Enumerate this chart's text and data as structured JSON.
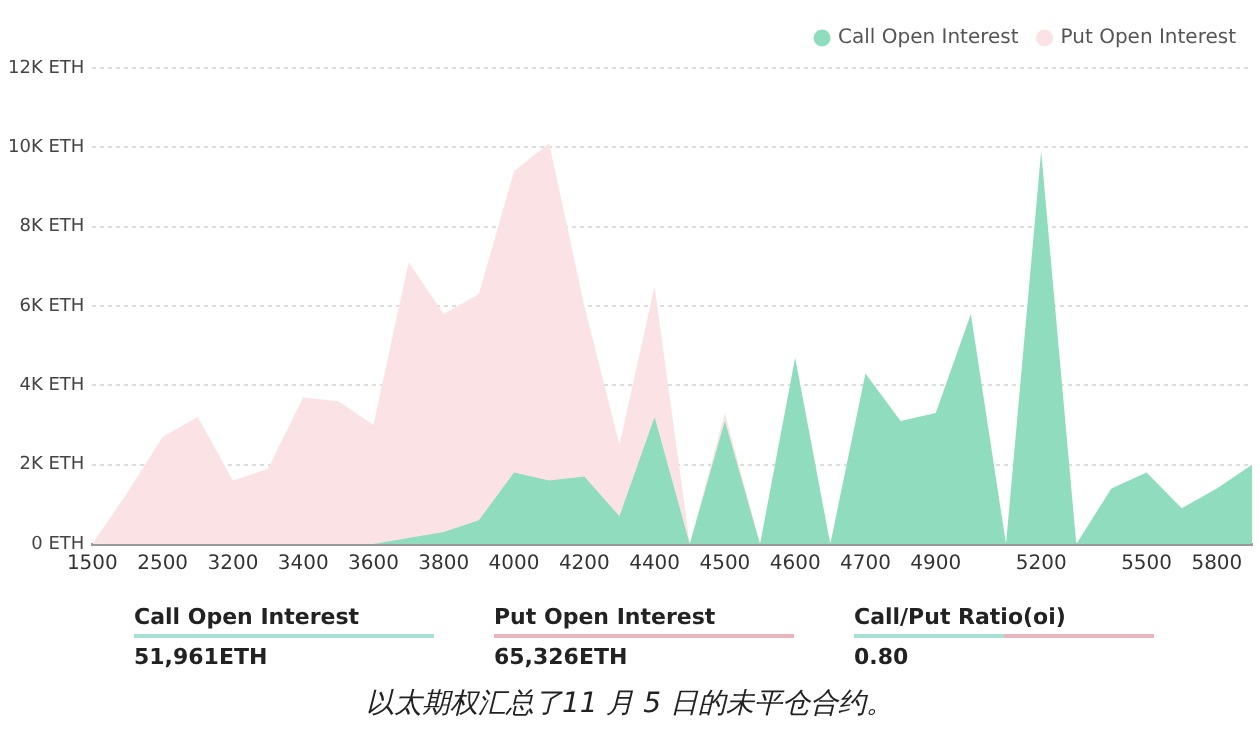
{
  "chart_data": {
    "type": "area",
    "categories": [
      "1500",
      null,
      "2500",
      null,
      "3200",
      null,
      "3400",
      null,
      "3600",
      null,
      "3800",
      null,
      "4000",
      null,
      "4200",
      null,
      "4400",
      null,
      "4500",
      null,
      "4600",
      null,
      "4700",
      null,
      "4900",
      null,
      null,
      "5200",
      null,
      null,
      "5500",
      null,
      "5800",
      null
    ],
    "series": [
      {
        "name": "Call Open Interest",
        "color": "#8fdcbf",
        "values": [
          0,
          0,
          0,
          0,
          0,
          0,
          0,
          0,
          0,
          150,
          300,
          600,
          1800,
          1600,
          1700,
          700,
          3200,
          0,
          3100,
          0,
          4700,
          0,
          4300,
          3100,
          3300,
          5800,
          0,
          9900,
          0,
          1400,
          1800,
          900,
          1400,
          2000
        ]
      },
      {
        "name": "Put Open Interest",
        "color": "#fbe3e5",
        "values": [
          0,
          1300,
          2700,
          3200,
          1600,
          1900,
          3700,
          3600,
          3000,
          7100,
          5800,
          6300,
          9400,
          10100,
          6000,
          2500,
          6500,
          0,
          3300,
          0,
          0,
          0,
          0,
          0,
          0,
          0,
          0,
          0,
          0,
          0,
          0,
          0,
          0,
          0
        ]
      }
    ],
    "ylim": [
      0,
      12000
    ],
    "yticks": [
      {
        "value": 0,
        "label": "0 ETH"
      },
      {
        "value": 2000,
        "label": "2K ETH"
      },
      {
        "value": 4000,
        "label": "4K ETH"
      },
      {
        "value": 6000,
        "label": "6K ETH"
      },
      {
        "value": 8000,
        "label": "8K ETH"
      },
      {
        "value": 10000,
        "label": "10K ETH"
      },
      {
        "value": 12000,
        "label": "12K ETH"
      }
    ],
    "grid": "y",
    "legend": "top right",
    "marker": "none",
    "annotations": [
      "Call Open Interest",
      "51,961ETH",
      "Put Open Interest",
      "65,326ETH",
      "Call/Put Ratio(oi)",
      "0.80",
      "以太期权汇总了11 月 5 日的未平仓合约。"
    ]
  }
}
